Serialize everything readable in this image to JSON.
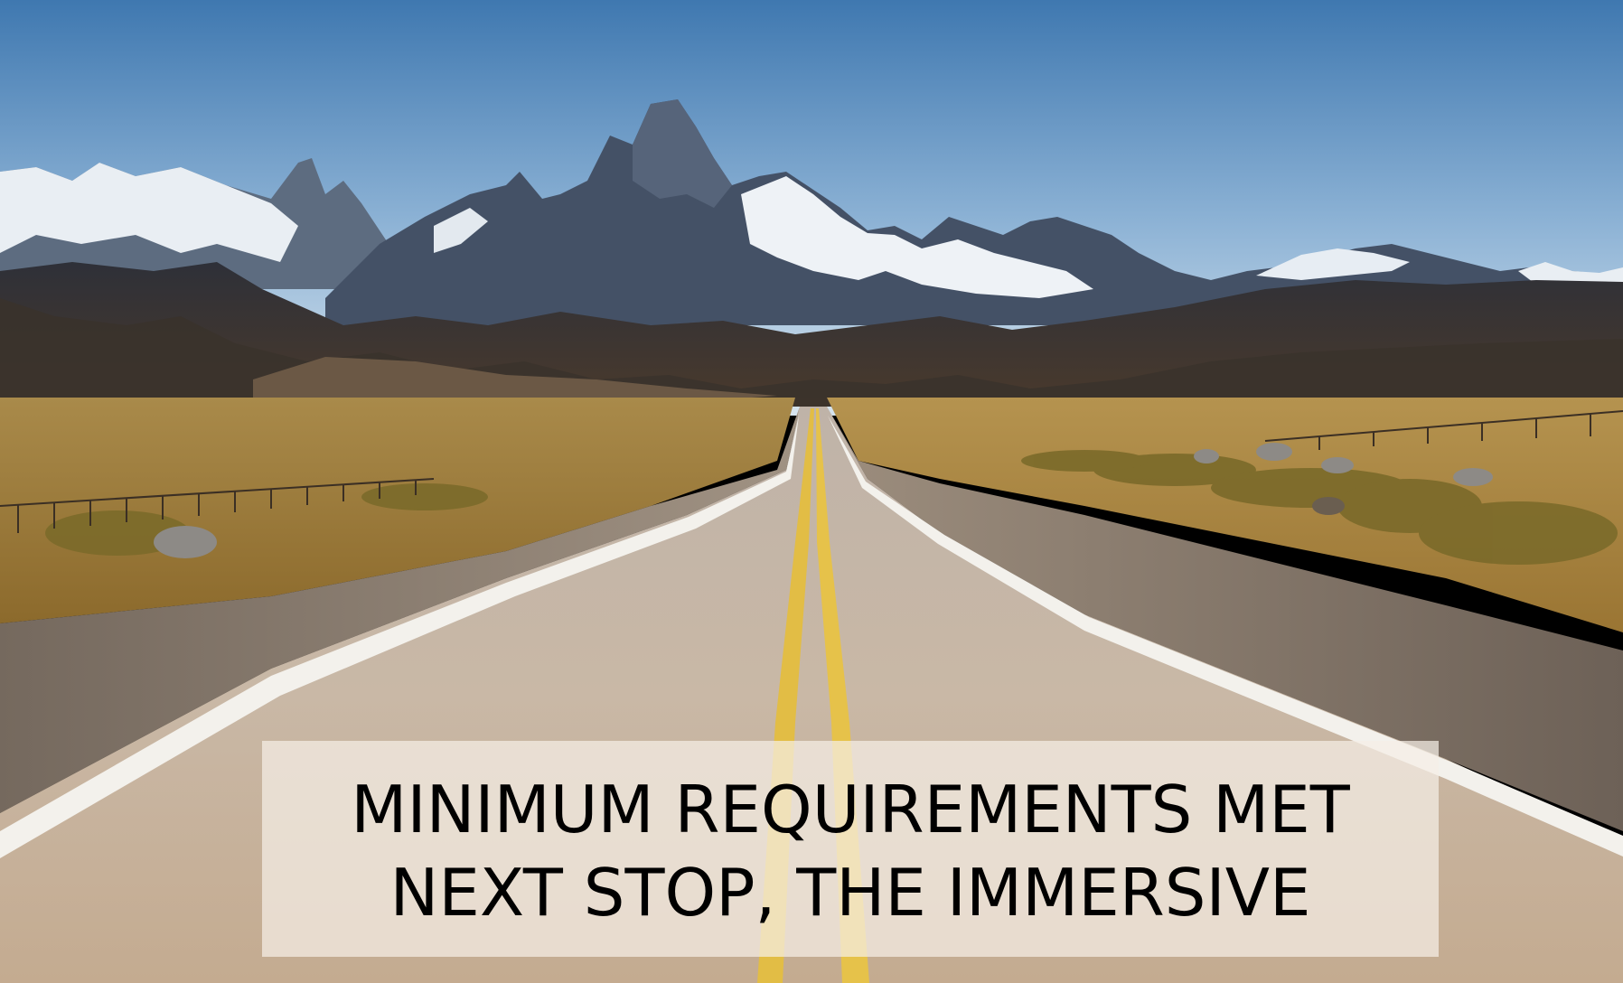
{
  "caption": {
    "line1": "MINIMUM REQUIREMENTS MET",
    "line2": "NEXT STOP, THE IMMERSIVE"
  },
  "scene": {
    "description_icons": [
      "mountain-range",
      "desert-road",
      "center-lines",
      "fence"
    ],
    "colors": {
      "sky_top": "#3f78b0",
      "sky_bottom": "#c9dbe9",
      "snow": "#f2f6fa",
      "rock": "#3e4b5c",
      "foothills": "#3b3531",
      "grass": "#b08a3c",
      "road": "#c9b8a6",
      "center_line": "#e6c24a",
      "edge_line": "#f3f1ec",
      "gravel": "#8c7f72"
    }
  }
}
